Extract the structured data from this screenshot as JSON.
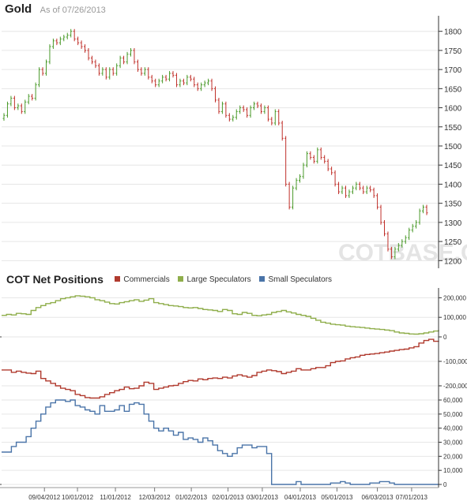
{
  "header": {
    "title": "Gold",
    "as_of": "As of 07/26/2013"
  },
  "section_title": "COT Net Positions",
  "watermark": "COTBASE.COM",
  "colors": {
    "up": "#4a9a2a",
    "down": "#c0302a",
    "commercials": "#b03a2e",
    "large": "#8fae4b",
    "small": "#4a74a8",
    "grid": "#e6e6e6",
    "axis": "#333333"
  },
  "chart_data": [
    {
      "type": "candlestick",
      "title": "Gold",
      "ylim": [
        1180,
        1820
      ],
      "yticks": [
        1200,
        1250,
        1300,
        1350,
        1400,
        1450,
        1500,
        1550,
        1600,
        1650,
        1700,
        1750,
        1800
      ],
      "x_start": "2012-07-30",
      "x_end": "2013-07-26",
      "closes": [
        1580,
        1610,
        1625,
        1600,
        1605,
        1590,
        1615,
        1630,
        1625,
        1660,
        1700,
        1690,
        1720,
        1760,
        1775,
        1770,
        1780,
        1785,
        1790,
        1800,
        1780,
        1770,
        1760,
        1750,
        1730,
        1720,
        1710,
        1690,
        1700,
        1680,
        1700,
        1690,
        1710,
        1730,
        1720,
        1740,
        1750,
        1720,
        1700,
        1690,
        1700,
        1680,
        1670,
        1660,
        1670,
        1680,
        1675,
        1690,
        1685,
        1660,
        1670,
        1665,
        1680,
        1675,
        1660,
        1650,
        1660,
        1665,
        1670,
        1650,
        1620,
        1590,
        1610,
        1580,
        1570,
        1575,
        1590,
        1600,
        1595,
        1580,
        1600,
        1610,
        1605,
        1590,
        1600,
        1570,
        1560,
        1590,
        1560,
        1520,
        1400,
        1340,
        1390,
        1410,
        1420,
        1450,
        1480,
        1470,
        1460,
        1490,
        1470,
        1460,
        1440,
        1430,
        1400,
        1380,
        1390,
        1370,
        1380,
        1390,
        1400,
        1390,
        1380,
        1390,
        1385,
        1370,
        1340,
        1300,
        1270,
        1230,
        1210,
        1230,
        1240,
        1250,
        1260,
        1280,
        1290,
        1300,
        1330,
        1340,
        1325
      ]
    },
    {
      "type": "line",
      "title": "COT Net Positions",
      "x_start": "2012-07-31",
      "x_end": "2013-07-23",
      "xticks": [
        "09/04/2012",
        "10/01/2012",
        "11/01/2012",
        "12/03/2012",
        "01/02/2013",
        "02/01/2013",
        "03/01/2013",
        "04/01/2013",
        "05/01/2013",
        "06/03/2013",
        "07/01/2013"
      ],
      "series": [
        {
          "name": "Commercials",
          "ylim": [
            -300000,
            0
          ],
          "yticks": [
            -100000,
            -200000
          ],
          "values": [
            -135000,
            -135000,
            -145000,
            -140000,
            -145000,
            -148000,
            -150000,
            -140000,
            -170000,
            -180000,
            -190000,
            -200000,
            -210000,
            -215000,
            -220000,
            -235000,
            -240000,
            -248000,
            -250000,
            -250000,
            -245000,
            -235000,
            -228000,
            -220000,
            -215000,
            -205000,
            -212000,
            -210000,
            -200000,
            -185000,
            -190000,
            -215000,
            -210000,
            -205000,
            -200000,
            -198000,
            -190000,
            -183000,
            -178000,
            -180000,
            -172000,
            -175000,
            -170000,
            -168000,
            -170000,
            -165000,
            -168000,
            -160000,
            -155000,
            -160000,
            -165000,
            -158000,
            -145000,
            -140000,
            -135000,
            -138000,
            -142000,
            -150000,
            -145000,
            -140000,
            -130000,
            -135000,
            -135000,
            -130000,
            -125000,
            -125000,
            -118000,
            -105000,
            -100000,
            -98000,
            -90000,
            -85000,
            -82000,
            -75000,
            -72000,
            -70000,
            -68000,
            -65000,
            -62000,
            -58000,
            -55000,
            -52000,
            -50000,
            -45000,
            -40000,
            -25000,
            -15000,
            -10000,
            -18000,
            -20000
          ]
        },
        {
          "name": "Large Speculators",
          "ylim": [
            0,
            250000
          ],
          "yticks": [
            200000,
            100000,
            0
          ],
          "values": [
            110000,
            115000,
            112000,
            120000,
            118000,
            115000,
            135000,
            150000,
            160000,
            170000,
            175000,
            185000,
            195000,
            200000,
            205000,
            210000,
            208000,
            205000,
            200000,
            190000,
            185000,
            178000,
            170000,
            168000,
            175000,
            180000,
            185000,
            190000,
            182000,
            188000,
            195000,
            175000,
            170000,
            165000,
            160000,
            158000,
            155000,
            150000,
            148000,
            150000,
            145000,
            140000,
            138000,
            135000,
            130000,
            140000,
            135000,
            118000,
            115000,
            125000,
            120000,
            110000,
            108000,
            112000,
            115000,
            125000,
            130000,
            135000,
            128000,
            122000,
            115000,
            110000,
            105000,
            95000,
            85000,
            75000,
            70000,
            65000,
            62000,
            60000,
            55000,
            52000,
            50000,
            48000,
            45000,
            42000,
            40000,
            38000,
            35000,
            32000,
            25000,
            20000,
            18000,
            15000,
            14000,
            16000,
            20000,
            25000,
            30000,
            35000
          ]
        },
        {
          "name": "Small Speculators",
          "ylim": [
            0,
            60000
          ],
          "yticks": [
            60000,
            50000,
            40000,
            30000,
            20000,
            10000,
            0
          ],
          "values": [
            23000,
            23000,
            27000,
            30000,
            30000,
            34000,
            40000,
            45000,
            50000,
            55000,
            58000,
            60000,
            60000,
            59000,
            61000,
            56000,
            55000,
            53000,
            52000,
            50000,
            56000,
            52000,
            52000,
            53000,
            56000,
            52000,
            57000,
            58000,
            57000,
            50000,
            45000,
            40000,
            38000,
            40000,
            38000,
            35000,
            37000,
            32000,
            33000,
            32000,
            30000,
            33000,
            31000,
            28000,
            24000,
            22000,
            20000,
            22000,
            26000,
            28000,
            28000,
            26000,
            27000,
            27000,
            22000,
            0,
            -2000,
            -1000,
            -3000,
            0,
            2000,
            0,
            -1000,
            -2000,
            -3000,
            0,
            0,
            1000,
            1000,
            2000,
            1000,
            0,
            -1000,
            0,
            0,
            1000,
            1000,
            2000,
            2000,
            1000,
            0,
            0,
            0,
            0,
            0,
            0,
            0,
            0,
            0,
            0
          ]
        }
      ]
    }
  ]
}
